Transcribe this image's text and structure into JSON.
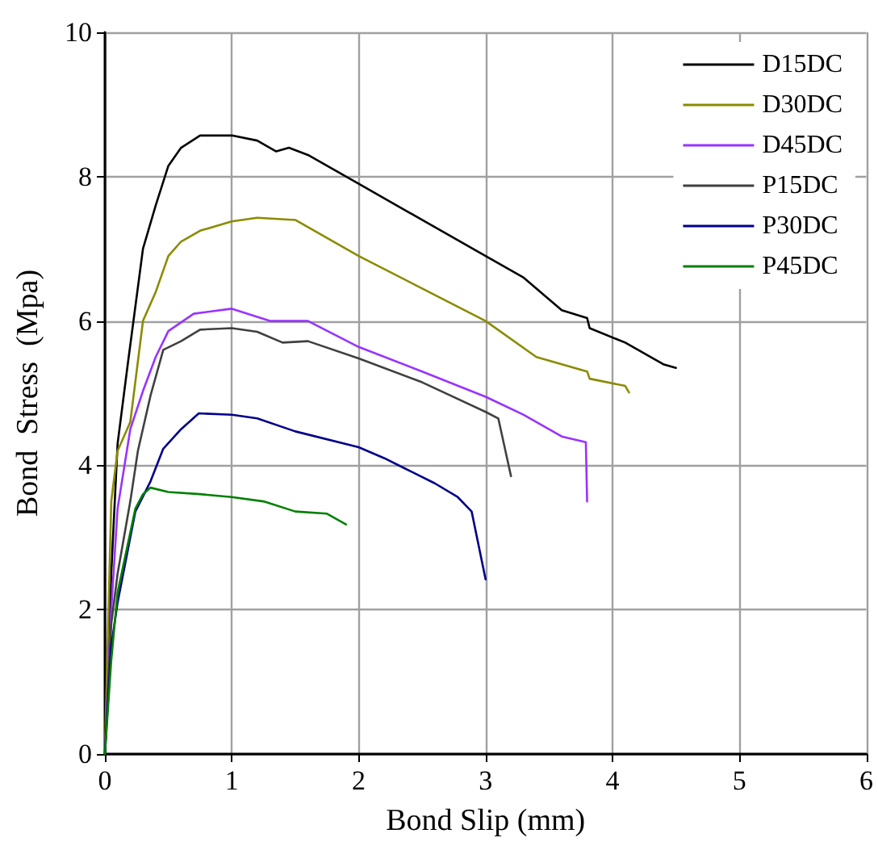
{
  "chart_data": {
    "type": "line",
    "xlabel": "Bond Slip (mm)",
    "ylabel": "Bond  Stress  (Mpa)",
    "xlim": [
      0,
      6
    ],
    "xticks": [
      0,
      1,
      2,
      3,
      4,
      5,
      6
    ],
    "ylim": [
      0,
      10
    ],
    "yticks": [
      0,
      2,
      4,
      6,
      8,
      10
    ],
    "grid": true,
    "legend": "top right",
    "marker": "none",
    "line_style": "solid",
    "series": [
      {
        "name": "D15DC",
        "color": "#000000",
        "x": [
          0,
          0.05,
          0.1,
          0.18,
          0.3,
          0.4,
          0.5,
          0.6,
          0.75,
          1,
          1.2,
          1.35,
          1.45,
          1.6,
          2,
          2.5,
          3,
          3.3,
          3.6,
          3.8,
          3.82,
          4.1,
          4.4,
          4.5
        ],
        "values": [
          0,
          2.5,
          4.3,
          5.4,
          7.0,
          7.6,
          8.15,
          8.4,
          8.57,
          8.57,
          8.5,
          8.35,
          8.4,
          8.3,
          7.9,
          7.4,
          6.9,
          6.6,
          6.15,
          6.04,
          5.9,
          5.7,
          5.4,
          5.35
        ]
      },
      {
        "name": "D30DC",
        "color": "#8b8b00",
        "x": [
          0,
          0.05,
          0.1,
          0.2,
          0.3,
          0.4,
          0.5,
          0.6,
          0.75,
          1,
          1.2,
          1.5,
          2,
          2.5,
          3,
          3.4,
          3.8,
          3.82,
          4.1,
          4.13
        ],
        "values": [
          0,
          3.5,
          4.2,
          4.6,
          6.0,
          6.4,
          6.9,
          7.1,
          7.25,
          7.38,
          7.43,
          7.4,
          6.9,
          6.45,
          6.0,
          5.5,
          5.3,
          5.2,
          5.1,
          5.01
        ]
      },
      {
        "name": "D45DC",
        "color": "#9933ff",
        "x": [
          0,
          0.05,
          0.1,
          0.2,
          0.3,
          0.4,
          0.5,
          0.7,
          1,
          1.3,
          1.6,
          2,
          2.5,
          3,
          3.3,
          3.6,
          3.79,
          3.8
        ],
        "values": [
          0,
          2,
          3.4,
          4.5,
          5.03,
          5.5,
          5.86,
          6.1,
          6.17,
          6.0,
          6.0,
          5.64,
          5.3,
          4.95,
          4.7,
          4.4,
          4.32,
          3.5
        ]
      },
      {
        "name": "P15DC",
        "color": "#404040",
        "x": [
          0,
          0.05,
          0.1,
          0.2,
          0.26,
          0.36,
          0.46,
          0.6,
          0.75,
          1,
          1.2,
          1.4,
          1.6,
          2,
          2.5,
          3,
          3.1,
          3.2
        ],
        "values": [
          0,
          1.8,
          2.5,
          3.5,
          4.2,
          4.97,
          5.6,
          5.72,
          5.88,
          5.9,
          5.85,
          5.7,
          5.72,
          5.48,
          5.15,
          4.74,
          4.65,
          3.85
        ]
      },
      {
        "name": "P30DC",
        "color": "#00008b",
        "x": [
          0,
          0.05,
          0.1,
          0.24,
          0.36,
          0.46,
          0.6,
          0.74,
          1,
          1.2,
          1.5,
          2,
          2.2,
          2.36,
          2.6,
          2.78,
          2.89,
          3.0
        ],
        "values": [
          0,
          1.5,
          2.1,
          3.36,
          3.78,
          4.23,
          4.5,
          4.72,
          4.7,
          4.65,
          4.47,
          4.25,
          4.1,
          3.96,
          3.75,
          3.56,
          3.36,
          2.42
        ]
      },
      {
        "name": "P45DC",
        "color": "#008000",
        "x": [
          0,
          0.05,
          0.1,
          0.24,
          0.3,
          0.36,
          0.5,
          0.75,
          1,
          1.25,
          1.5,
          1.75,
          1.9
        ],
        "values": [
          0,
          1.3,
          2.24,
          3.4,
          3.6,
          3.69,
          3.63,
          3.6,
          3.56,
          3.5,
          3.36,
          3.33,
          3.18
        ]
      }
    ]
  }
}
